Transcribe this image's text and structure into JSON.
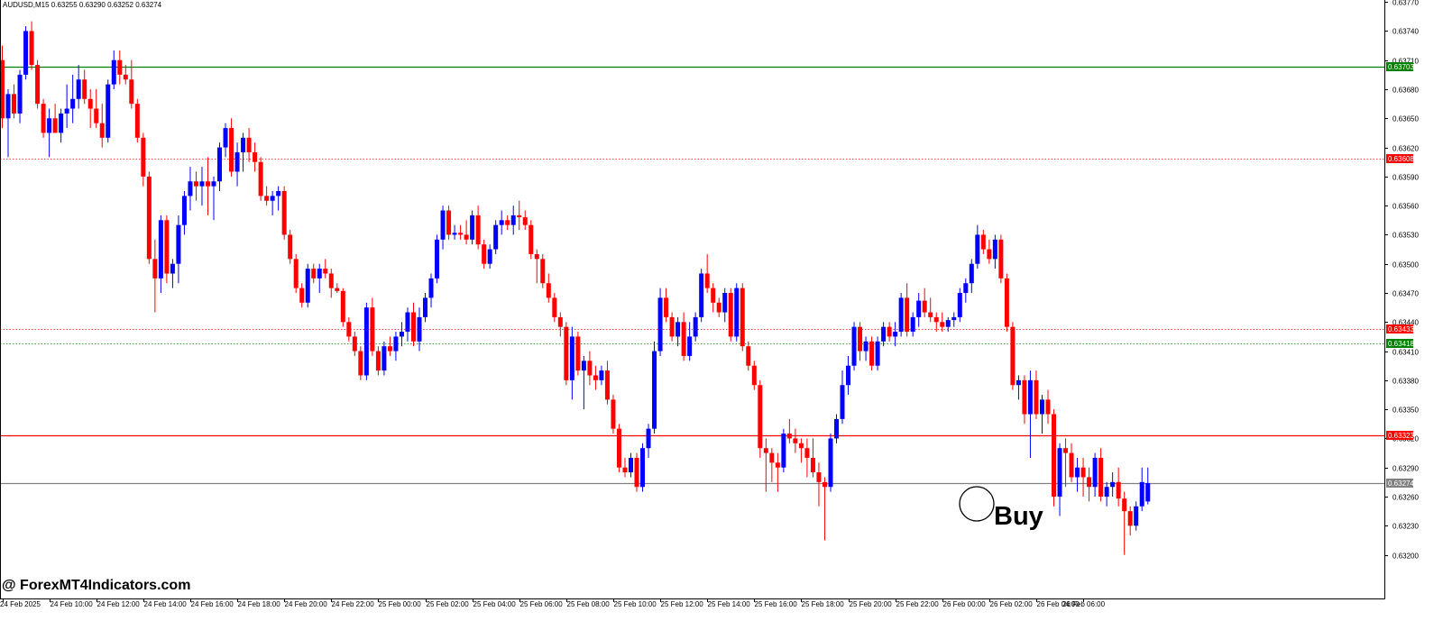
{
  "header": {
    "symbol_info": "AUDUSD,M15  0.63255 0.63290 0.63252 0.63274"
  },
  "watermark": "@ ForexMT4Indicators.com",
  "annotation": {
    "label": "Buy"
  },
  "colors": {
    "bull": "#0000ff",
    "bear": "#ff0000",
    "grid": "#000000",
    "green_line": "#008000",
    "red_line": "#ff0000",
    "price_line": "#808080"
  },
  "chart_data": {
    "type": "candlestick",
    "symbol": "AUDUSD",
    "timeframe": "M15",
    "ylim": [
      0.63155,
      0.63772
    ],
    "y_ticks": [
      "0.63200",
      "0.63230",
      "0.63260",
      "0.63290",
      "0.63320",
      "0.63350",
      "0.63380",
      "0.63410",
      "0.63440",
      "0.63470",
      "0.63500",
      "0.63530",
      "0.63560",
      "0.63590",
      "0.63620",
      "0.63650",
      "0.63680",
      "0.63710",
      "0.63740",
      "0.63770"
    ],
    "x_ticks": [
      "24 Feb 2025",
      "24 Feb 10:00",
      "24 Feb 12:00",
      "24 Feb 14:00",
      "24 Feb 16:00",
      "24 Feb 18:00",
      "24 Feb 20:00",
      "24 Feb 22:00",
      "25 Feb 00:00",
      "25 Feb 02:00",
      "25 Feb 04:00",
      "25 Feb 06:00",
      "25 Feb 08:00",
      "25 Feb 10:00",
      "25 Feb 12:00",
      "25 Feb 14:00",
      "25 Feb 16:00",
      "25 Feb 18:00",
      "25 Feb 20:00",
      "25 Feb 22:00",
      "26 Feb 00:00",
      "26 Feb 02:00",
      "26 Feb 04:00",
      "26 Feb 06:00"
    ],
    "levels": [
      {
        "price": 0.63703,
        "label": "0.63703",
        "color": "#008000",
        "style": "solid"
      },
      {
        "price": 0.63608,
        "label": "0.63608",
        "color": "#ff0000",
        "style": "dotted"
      },
      {
        "price": 0.63433,
        "label": "0.63433",
        "color": "#ff0000",
        "style": "dotted"
      },
      {
        "price": 0.63418,
        "label": "0.63418",
        "color": "#008000",
        "style": "dotted"
      },
      {
        "price": 0.63323,
        "label": "0.63323",
        "color": "#ff0000",
        "style": "solid"
      },
      {
        "price": 0.63274,
        "label": "0.63274",
        "color": "#808080",
        "style": "solid"
      }
    ],
    "candles": [
      [
        0.6371,
        0.63725,
        0.6364,
        0.6365
      ],
      [
        0.6365,
        0.6368,
        0.6361,
        0.63675
      ],
      [
        0.63675,
        0.63685,
        0.6365,
        0.63655
      ],
      [
        0.63655,
        0.637,
        0.63645,
        0.63695
      ],
      [
        0.63695,
        0.63745,
        0.6369,
        0.6374
      ],
      [
        0.6374,
        0.6375,
        0.637,
        0.63705
      ],
      [
        0.63705,
        0.6371,
        0.6366,
        0.63665
      ],
      [
        0.63665,
        0.6367,
        0.6363,
        0.63635
      ],
      [
        0.63635,
        0.6366,
        0.6361,
        0.6365
      ],
      [
        0.6365,
        0.63665,
        0.6364,
        0.63635
      ],
      [
        0.63635,
        0.6366,
        0.63625,
        0.63655
      ],
      [
        0.63655,
        0.63685,
        0.6364,
        0.6366
      ],
      [
        0.6366,
        0.63695,
        0.63645,
        0.6367
      ],
      [
        0.6367,
        0.63705,
        0.6366,
        0.6369
      ],
      [
        0.6369,
        0.637,
        0.63665,
        0.6367
      ],
      [
        0.6367,
        0.6368,
        0.6364,
        0.6366
      ],
      [
        0.6366,
        0.6368,
        0.6364,
        0.63645
      ],
      [
        0.63645,
        0.63665,
        0.6362,
        0.6363
      ],
      [
        0.6363,
        0.6369,
        0.63625,
        0.63685
      ],
      [
        0.63685,
        0.6372,
        0.6368,
        0.6371
      ],
      [
        0.6371,
        0.6372,
        0.63685,
        0.63695
      ],
      [
        0.63695,
        0.63705,
        0.63685,
        0.6369
      ],
      [
        0.6369,
        0.6371,
        0.6366,
        0.63665
      ],
      [
        0.63665,
        0.6367,
        0.63625,
        0.6363
      ],
      [
        0.6363,
        0.63635,
        0.6358,
        0.6359
      ],
      [
        0.6359,
        0.63595,
        0.635,
        0.63505
      ],
      [
        0.63505,
        0.63525,
        0.6345,
        0.63485
      ],
      [
        0.63485,
        0.6355,
        0.6347,
        0.63545
      ],
      [
        0.63545,
        0.6355,
        0.6348,
        0.6349
      ],
      [
        0.6349,
        0.63505,
        0.63475,
        0.635
      ],
      [
        0.635,
        0.6355,
        0.6348,
        0.6354
      ],
      [
        0.6354,
        0.63575,
        0.6353,
        0.6357
      ],
      [
        0.6357,
        0.636,
        0.63555,
        0.63585
      ],
      [
        0.63585,
        0.63595,
        0.63565,
        0.6358
      ],
      [
        0.6358,
        0.636,
        0.6356,
        0.63585
      ],
      [
        0.63585,
        0.6361,
        0.6355,
        0.6358
      ],
      [
        0.6358,
        0.6359,
        0.63545,
        0.63585
      ],
      [
        0.63585,
        0.63625,
        0.63575,
        0.6362
      ],
      [
        0.6362,
        0.63645,
        0.6361,
        0.6364
      ],
      [
        0.6364,
        0.6365,
        0.6359,
        0.63595
      ],
      [
        0.63595,
        0.63625,
        0.6358,
        0.63615
      ],
      [
        0.63615,
        0.63635,
        0.63595,
        0.6363
      ],
      [
        0.6363,
        0.6364,
        0.63605,
        0.63615
      ],
      [
        0.63615,
        0.63625,
        0.63595,
        0.63605
      ],
      [
        0.63605,
        0.6361,
        0.63565,
        0.6357
      ],
      [
        0.6357,
        0.6358,
        0.6356,
        0.63565
      ],
      [
        0.63565,
        0.63575,
        0.6355,
        0.6357
      ],
      [
        0.6357,
        0.6358,
        0.63555,
        0.63575
      ],
      [
        0.63575,
        0.6358,
        0.63525,
        0.6353
      ],
      [
        0.6353,
        0.63535,
        0.635,
        0.63505
      ],
      [
        0.63505,
        0.6351,
        0.6347,
        0.63475
      ],
      [
        0.63475,
        0.6348,
        0.63455,
        0.6346
      ],
      [
        0.6346,
        0.635,
        0.63455,
        0.63495
      ],
      [
        0.63495,
        0.635,
        0.6348,
        0.63485
      ],
      [
        0.63485,
        0.635,
        0.6347,
        0.63495
      ],
      [
        0.63495,
        0.63505,
        0.63485,
        0.6349
      ],
      [
        0.6349,
        0.63495,
        0.63465,
        0.63475
      ],
      [
        0.63475,
        0.6348,
        0.6347,
        0.63472
      ],
      [
        0.63472,
        0.63475,
        0.63435,
        0.6344
      ],
      [
        0.6344,
        0.63445,
        0.6342,
        0.63425
      ],
      [
        0.63425,
        0.6343,
        0.63405,
        0.6341
      ],
      [
        0.6341,
        0.63415,
        0.6338,
        0.63385
      ],
      [
        0.63385,
        0.6346,
        0.6338,
        0.63455
      ],
      [
        0.63455,
        0.63465,
        0.63405,
        0.6341
      ],
      [
        0.6341,
        0.63415,
        0.63385,
        0.6339
      ],
      [
        0.6339,
        0.6342,
        0.63385,
        0.63415
      ],
      [
        0.63415,
        0.63425,
        0.63405,
        0.6341
      ],
      [
        0.6341,
        0.6343,
        0.634,
        0.63425
      ],
      [
        0.63425,
        0.6344,
        0.63415,
        0.6343
      ],
      [
        0.6343,
        0.63455,
        0.6342,
        0.6345
      ],
      [
        0.6345,
        0.6346,
        0.63415,
        0.6342
      ],
      [
        0.6342,
        0.63455,
        0.6341,
        0.63445
      ],
      [
        0.63445,
        0.6347,
        0.6344,
        0.63465
      ],
      [
        0.63465,
        0.6349,
        0.63455,
        0.63485
      ],
      [
        0.63485,
        0.6353,
        0.6348,
        0.63525
      ],
      [
        0.63525,
        0.6356,
        0.63515,
        0.63555
      ],
      [
        0.63555,
        0.6356,
        0.63525,
        0.6353
      ],
      [
        0.6353,
        0.6354,
        0.63525,
        0.63532
      ],
      [
        0.63532,
        0.6354,
        0.63525,
        0.6353
      ],
      [
        0.6353,
        0.63545,
        0.6352,
        0.63525
      ],
      [
        0.63525,
        0.63555,
        0.6352,
        0.6355
      ],
      [
        0.6355,
        0.6356,
        0.63515,
        0.6352
      ],
      [
        0.6352,
        0.63525,
        0.63495,
        0.635
      ],
      [
        0.635,
        0.6352,
        0.63495,
        0.63515
      ],
      [
        0.63515,
        0.63545,
        0.6351,
        0.6354
      ],
      [
        0.6354,
        0.63555,
        0.6353,
        0.63545
      ],
      [
        0.63545,
        0.6355,
        0.63535,
        0.6354
      ],
      [
        0.6354,
        0.6356,
        0.6353,
        0.6355
      ],
      [
        0.6355,
        0.63565,
        0.63535,
        0.63548
      ],
      [
        0.63548,
        0.63555,
        0.63535,
        0.6354
      ],
      [
        0.6354,
        0.63545,
        0.63505,
        0.6351
      ],
      [
        0.6351,
        0.63515,
        0.6348,
        0.63505
      ],
      [
        0.63505,
        0.6351,
        0.63475,
        0.6348
      ],
      [
        0.6348,
        0.6349,
        0.6346,
        0.63465
      ],
      [
        0.63465,
        0.6347,
        0.6344,
        0.63445
      ],
      [
        0.63445,
        0.6345,
        0.63425,
        0.63435
      ],
      [
        0.63435,
        0.6344,
        0.63375,
        0.6338
      ],
      [
        0.6338,
        0.63435,
        0.6336,
        0.63425
      ],
      [
        0.63425,
        0.6343,
        0.63385,
        0.6339
      ],
      [
        0.6339,
        0.63405,
        0.6335,
        0.634
      ],
      [
        0.634,
        0.6341,
        0.63375,
        0.63385
      ],
      [
        0.63385,
        0.63395,
        0.6337,
        0.6338
      ],
      [
        0.6338,
        0.63395,
        0.63375,
        0.6339
      ],
      [
        0.6339,
        0.634,
        0.63355,
        0.6336
      ],
      [
        0.6336,
        0.63365,
        0.63325,
        0.6333
      ],
      [
        0.6333,
        0.63335,
        0.63285,
        0.6329
      ],
      [
        0.6329,
        0.633,
        0.6328,
        0.63285
      ],
      [
        0.63285,
        0.63305,
        0.6328,
        0.633
      ],
      [
        0.633,
        0.63305,
        0.63265,
        0.6327
      ],
      [
        0.6327,
        0.63315,
        0.63265,
        0.6331
      ],
      [
        0.6331,
        0.63335,
        0.633,
        0.6333
      ],
      [
        0.6333,
        0.6342,
        0.63325,
        0.6341
      ],
      [
        0.6341,
        0.63475,
        0.63405,
        0.63465
      ],
      [
        0.63465,
        0.63475,
        0.6344,
        0.63445
      ],
      [
        0.63445,
        0.6345,
        0.6342,
        0.63425
      ],
      [
        0.63425,
        0.63445,
        0.63415,
        0.6344
      ],
      [
        0.6344,
        0.6345,
        0.634,
        0.63405
      ],
      [
        0.63405,
        0.6344,
        0.634,
        0.63425
      ],
      [
        0.63425,
        0.6345,
        0.6342,
        0.63445
      ],
      [
        0.63445,
        0.63495,
        0.6344,
        0.6349
      ],
      [
        0.6349,
        0.6351,
        0.6347,
        0.63475
      ],
      [
        0.63475,
        0.6348,
        0.6345,
        0.6346
      ],
      [
        0.6346,
        0.63465,
        0.63445,
        0.6345
      ],
      [
        0.6345,
        0.63475,
        0.6344,
        0.6347
      ],
      [
        0.6347,
        0.63475,
        0.6342,
        0.63425
      ],
      [
        0.63425,
        0.6348,
        0.6342,
        0.63475
      ],
      [
        0.63475,
        0.6348,
        0.6341,
        0.63415
      ],
      [
        0.63415,
        0.6342,
        0.6339,
        0.63395
      ],
      [
        0.63395,
        0.634,
        0.6337,
        0.63375
      ],
      [
        0.63375,
        0.6338,
        0.633,
        0.6331
      ],
      [
        0.6331,
        0.6332,
        0.63265,
        0.63305
      ],
      [
        0.63305,
        0.6331,
        0.63275,
        0.63295
      ],
      [
        0.63295,
        0.63305,
        0.63265,
        0.6329
      ],
      [
        0.6329,
        0.6333,
        0.63285,
        0.63325
      ],
      [
        0.63325,
        0.6334,
        0.63315,
        0.6332
      ],
      [
        0.6332,
        0.6333,
        0.63305,
        0.63315
      ],
      [
        0.63315,
        0.6332,
        0.63295,
        0.6331
      ],
      [
        0.6331,
        0.6332,
        0.6328,
        0.633
      ],
      [
        0.633,
        0.6332,
        0.6328,
        0.63285
      ],
      [
        0.63285,
        0.63295,
        0.6325,
        0.63275
      ],
      [
        0.63275,
        0.6328,
        0.63215,
        0.6327
      ],
      [
        0.6327,
        0.63325,
        0.63265,
        0.6332
      ],
      [
        0.6332,
        0.63345,
        0.63315,
        0.6334
      ],
      [
        0.6334,
        0.6339,
        0.63335,
        0.63375
      ],
      [
        0.63375,
        0.63405,
        0.63365,
        0.63395
      ],
      [
        0.63395,
        0.6344,
        0.6339,
        0.63435
      ],
      [
        0.63435,
        0.6344,
        0.634,
        0.6341
      ],
      [
        0.6341,
        0.63425,
        0.634,
        0.6342
      ],
      [
        0.6342,
        0.63425,
        0.6339,
        0.63395
      ],
      [
        0.63395,
        0.63425,
        0.6339,
        0.6342
      ],
      [
        0.6342,
        0.6344,
        0.63415,
        0.63435
      ],
      [
        0.63435,
        0.6344,
        0.6342,
        0.63425
      ],
      [
        0.63425,
        0.6344,
        0.63415,
        0.6343
      ],
      [
        0.6343,
        0.6347,
        0.63425,
        0.63465
      ],
      [
        0.63465,
        0.6348,
        0.63425,
        0.6343
      ],
      [
        0.6343,
        0.6345,
        0.63425,
        0.63445
      ],
      [
        0.63445,
        0.6347,
        0.63435,
        0.63462
      ],
      [
        0.63462,
        0.63475,
        0.63445,
        0.6345
      ],
      [
        0.6345,
        0.63465,
        0.6344,
        0.63445
      ],
      [
        0.63445,
        0.6345,
        0.6343,
        0.6344
      ],
      [
        0.6344,
        0.6345,
        0.6343,
        0.63435
      ],
      [
        0.63435,
        0.63445,
        0.6343,
        0.63442
      ],
      [
        0.63442,
        0.6345,
        0.63435,
        0.63445
      ],
      [
        0.63445,
        0.63475,
        0.6344,
        0.6347
      ],
      [
        0.6347,
        0.63485,
        0.6346,
        0.6348
      ],
      [
        0.6348,
        0.63505,
        0.6347,
        0.635
      ],
      [
        0.635,
        0.6354,
        0.63495,
        0.6353
      ],
      [
        0.6353,
        0.63535,
        0.6351,
        0.63515
      ],
      [
        0.63515,
        0.63525,
        0.635,
        0.63505
      ],
      [
        0.63505,
        0.6353,
        0.63495,
        0.63525
      ],
      [
        0.63525,
        0.6353,
        0.6348,
        0.63485
      ],
      [
        0.63485,
        0.6349,
        0.6343,
        0.63435
      ],
      [
        0.63435,
        0.6344,
        0.6337,
        0.63375
      ],
      [
        0.63375,
        0.63385,
        0.6336,
        0.6338
      ],
      [
        0.6338,
        0.63385,
        0.63335,
        0.63345
      ],
      [
        0.63345,
        0.6339,
        0.633,
        0.6338
      ],
      [
        0.6338,
        0.6339,
        0.6334,
        0.63345
      ],
      [
        0.63345,
        0.63365,
        0.63325,
        0.6336
      ],
      [
        0.6336,
        0.6337,
        0.63335,
        0.63345
      ],
      [
        0.63345,
        0.6335,
        0.6325,
        0.6326
      ],
      [
        0.6326,
        0.63315,
        0.6324,
        0.6331
      ],
      [
        0.6331,
        0.6332,
        0.6327,
        0.63305
      ],
      [
        0.63305,
        0.63315,
        0.63275,
        0.6328
      ],
      [
        0.6328,
        0.633,
        0.63265,
        0.6329
      ],
      [
        0.6329,
        0.633,
        0.6326,
        0.6328
      ],
      [
        0.6328,
        0.6329,
        0.63255,
        0.6327
      ],
      [
        0.6327,
        0.63305,
        0.6326,
        0.633
      ],
      [
        0.633,
        0.6331,
        0.63255,
        0.6326
      ],
      [
        0.6326,
        0.63275,
        0.6325,
        0.6327
      ],
      [
        0.6327,
        0.63285,
        0.6326,
        0.63275
      ],
      [
        0.63275,
        0.6329,
        0.6325,
        0.63258
      ],
      [
        0.63258,
        0.63265,
        0.632,
        0.63245
      ],
      [
        0.63245,
        0.6325,
        0.6322,
        0.6323
      ],
      [
        0.6323,
        0.63255,
        0.63225,
        0.6325
      ],
      [
        0.6325,
        0.6329,
        0.63245,
        0.63275
      ],
      [
        0.63255,
        0.6329,
        0.63252,
        0.63274
      ]
    ]
  }
}
